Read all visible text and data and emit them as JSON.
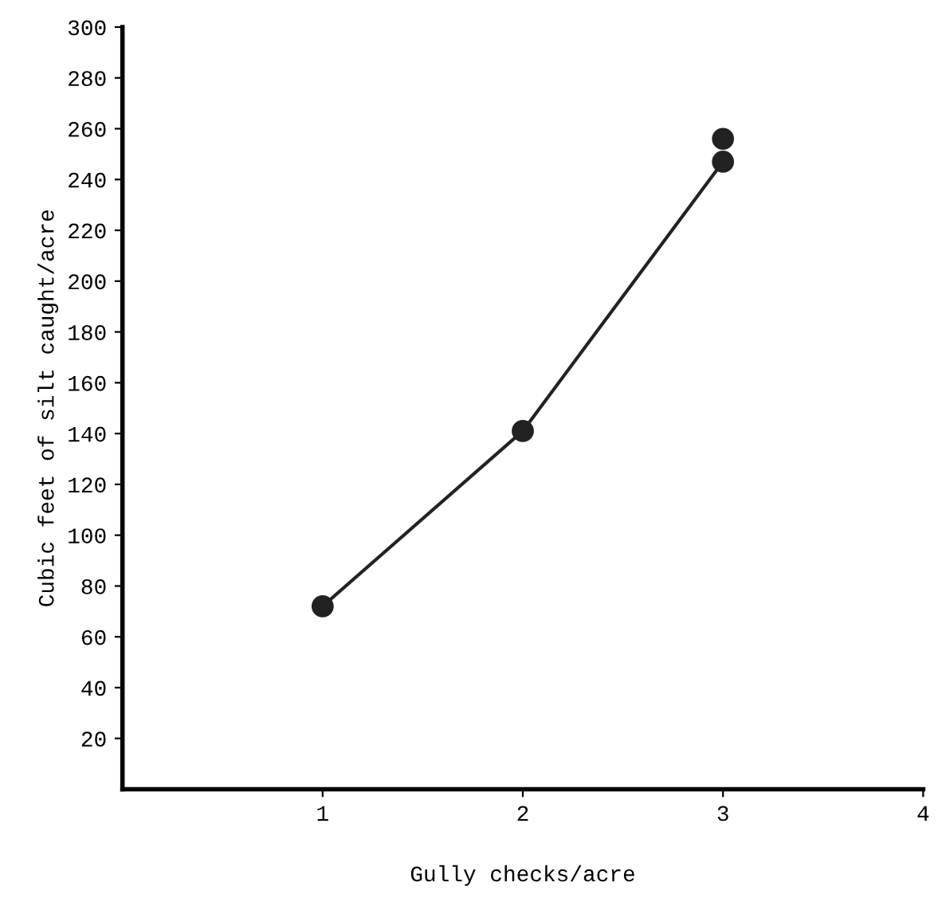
{
  "chart_data": {
    "type": "line",
    "xlabel": "Gully checks/acre",
    "ylabel": "Cubic feet of silt caught/acre",
    "series": [
      {
        "color": "#222222",
        "x": [
          1,
          2,
          3
        ],
        "values": [
          72,
          141,
          247
        ]
      },
      {
        "type": "scatter",
        "color": "#222222",
        "x": [
          3
        ],
        "values": [
          256
        ]
      }
    ],
    "xlim": [
      0,
      4
    ],
    "ylim": [
      0,
      300
    ],
    "xticks": [
      1,
      2,
      3,
      4
    ],
    "yticks": [
      20,
      40,
      60,
      80,
      100,
      120,
      140,
      160,
      180,
      200,
      220,
      240,
      260,
      280,
      300
    ],
    "marker": "circle",
    "line_style": "solid",
    "grid": false,
    "legend": false
  }
}
